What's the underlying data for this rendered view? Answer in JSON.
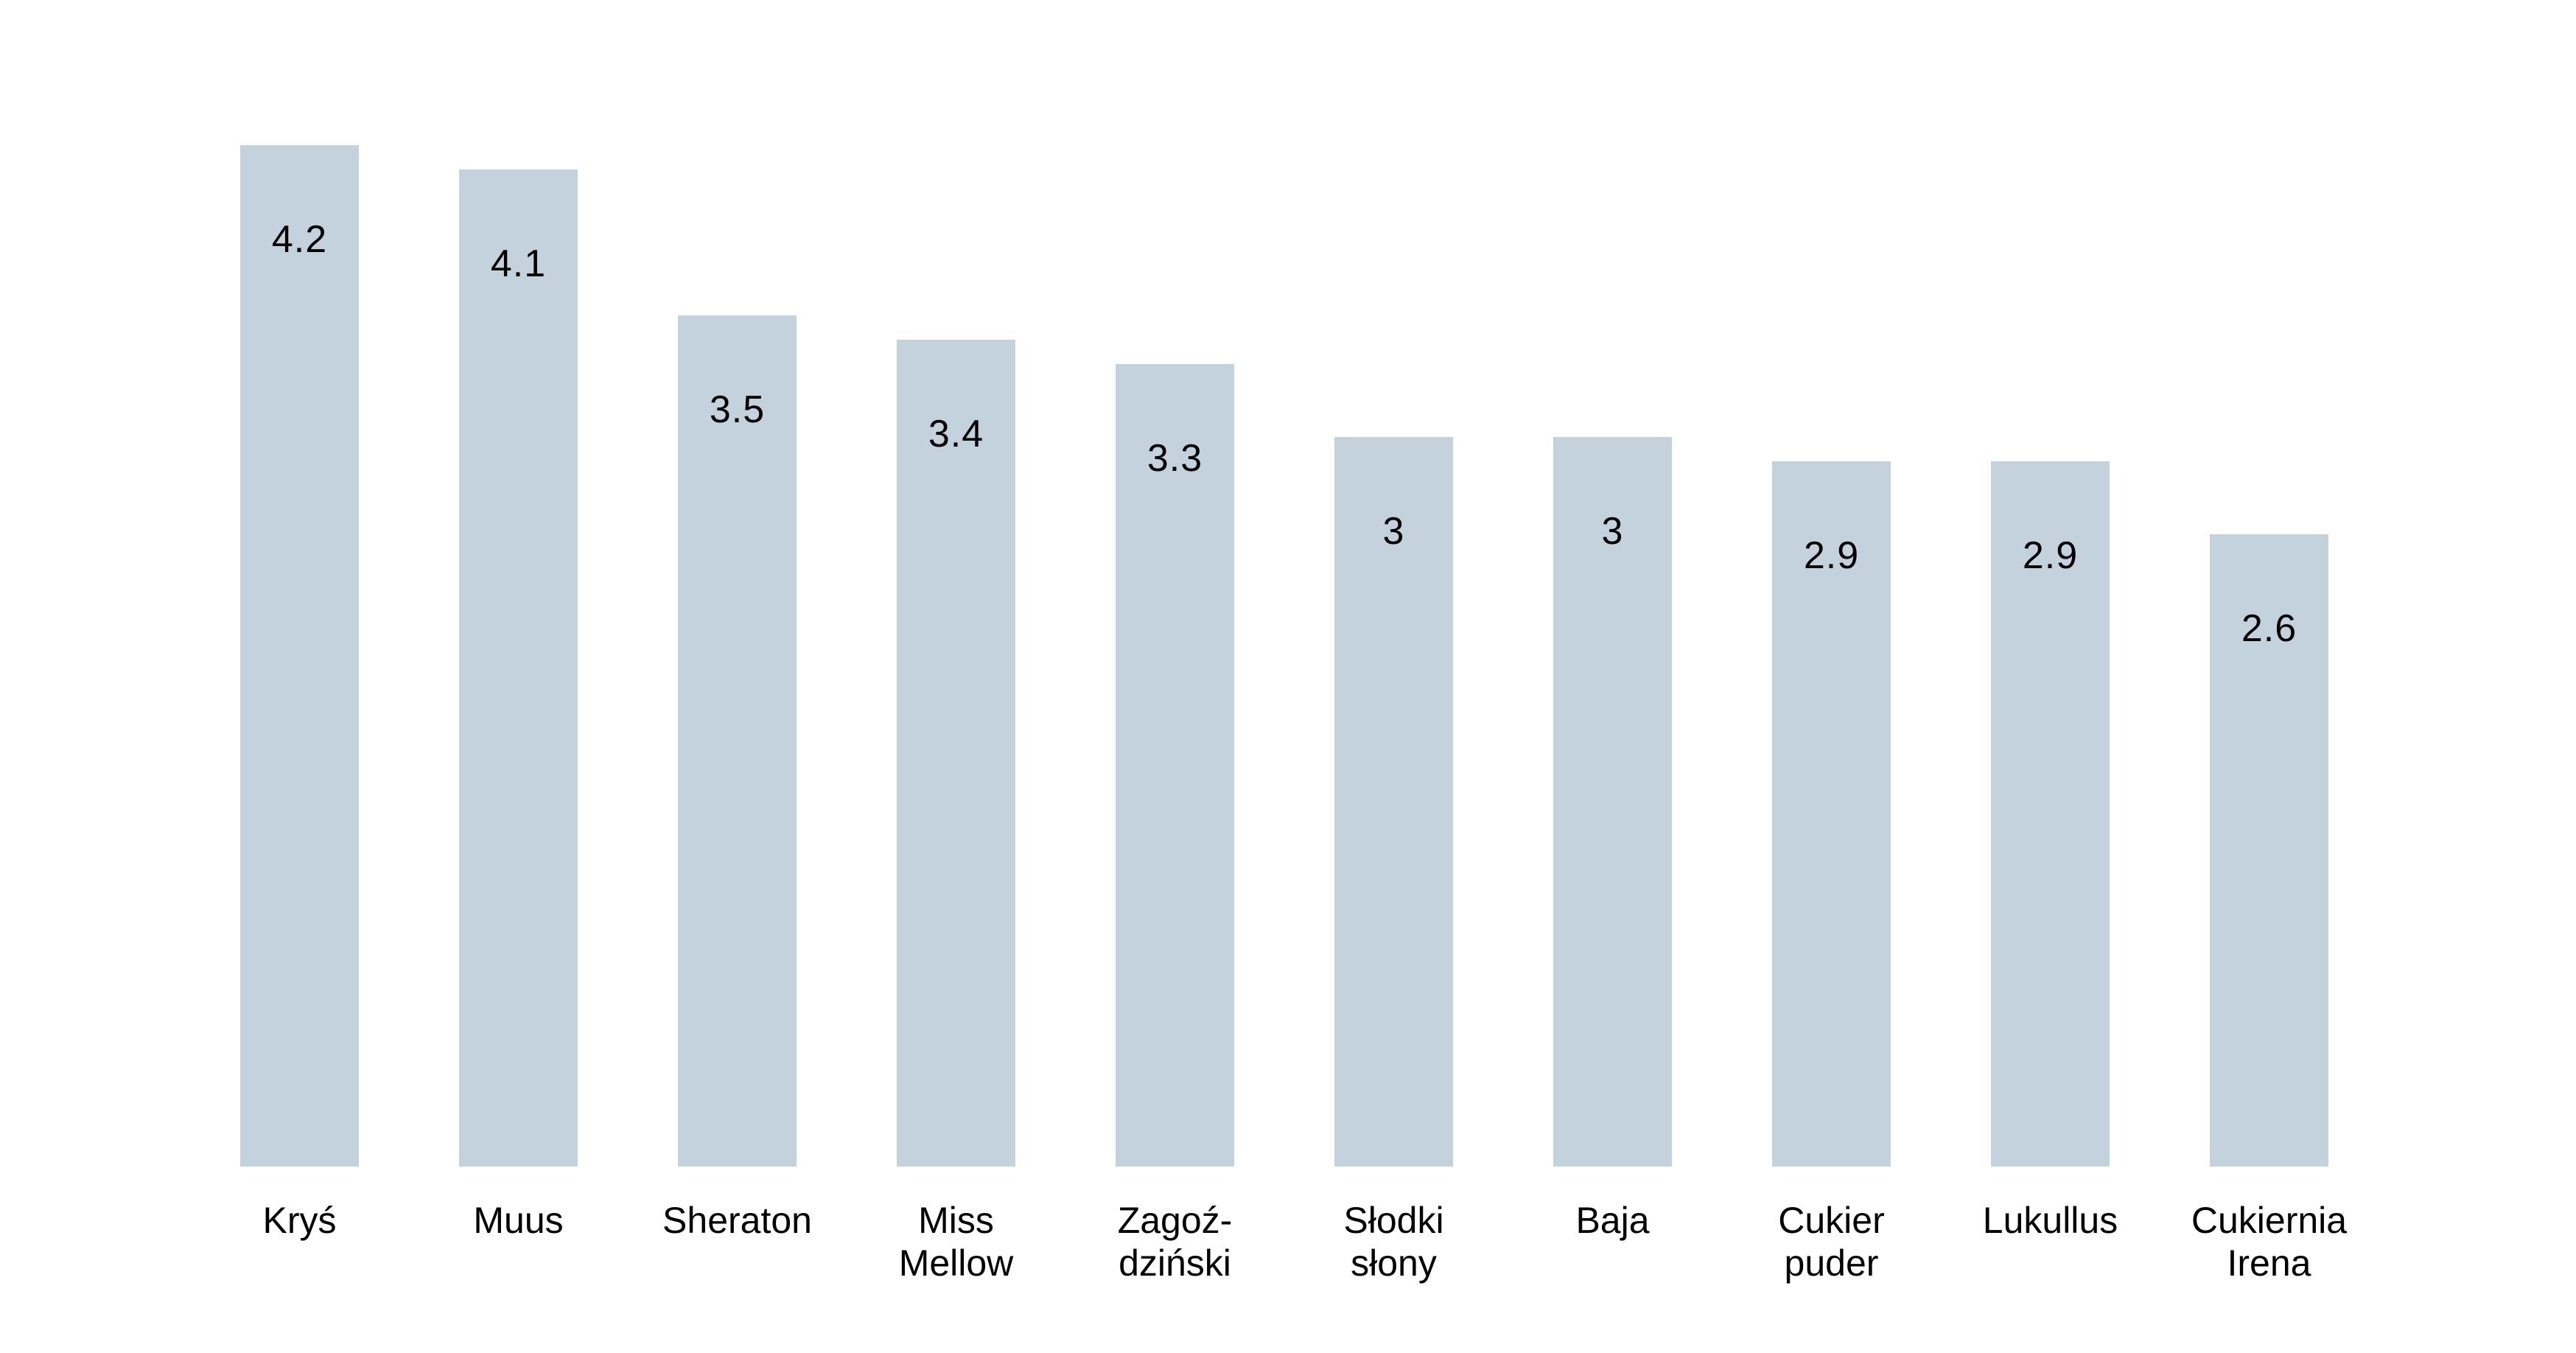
{
  "page": {
    "background_color": "#ffffff",
    "text_color": "#000000"
  },
  "chart_data": {
    "type": "bar",
    "title": "",
    "xlabel": "",
    "ylabel": "",
    "categories": [
      "Kryś",
      "Muus",
      "Sheraton",
      "Miss Mellow",
      "Zagoździński",
      "Słodki słony",
      "Baja",
      "Cukier puder",
      "Lukullus",
      "Cukiernia Irena"
    ],
    "values": [
      4.2,
      4.1,
      3.5,
      3.4,
      3.3,
      3,
      3,
      2.9,
      2.9,
      2.6
    ],
    "value_labels": [
      "4.2",
      "4.1",
      "3.5",
      "3.4",
      "3.3",
      "3",
      "3",
      "2.9",
      "2.9",
      "2.6"
    ],
    "ylim": [
      0,
      4.2
    ],
    "grid": false,
    "legend": "none",
    "axes_visible": false,
    "bar_color": "#c3d2dc",
    "value_label_color": "#000000",
    "value_label_position": "inside-top",
    "tick_label_color": "#000000"
  },
  "bars": [
    {
      "category_display": "Kryś",
      "value_label": "4.2"
    },
    {
      "category_display": "Muus",
      "value_label": "4.1"
    },
    {
      "category_display": "Sheraton",
      "value_label": "3.5"
    },
    {
      "category_display": "Miss\nMellow",
      "value_label": "3.4"
    },
    {
      "category_display": "Zagoź-\ndziński",
      "value_label": "3.3"
    },
    {
      "category_display": "Słodki\nsłony",
      "value_label": "3"
    },
    {
      "category_display": "Baja",
      "value_label": "3"
    },
    {
      "category_display": "Cukier\npuder",
      "value_label": "2.9"
    },
    {
      "category_display": "Lukullus",
      "value_label": "2.9"
    },
    {
      "category_display": "Cukiernia\nIrena",
      "value_label": "2.6"
    }
  ]
}
